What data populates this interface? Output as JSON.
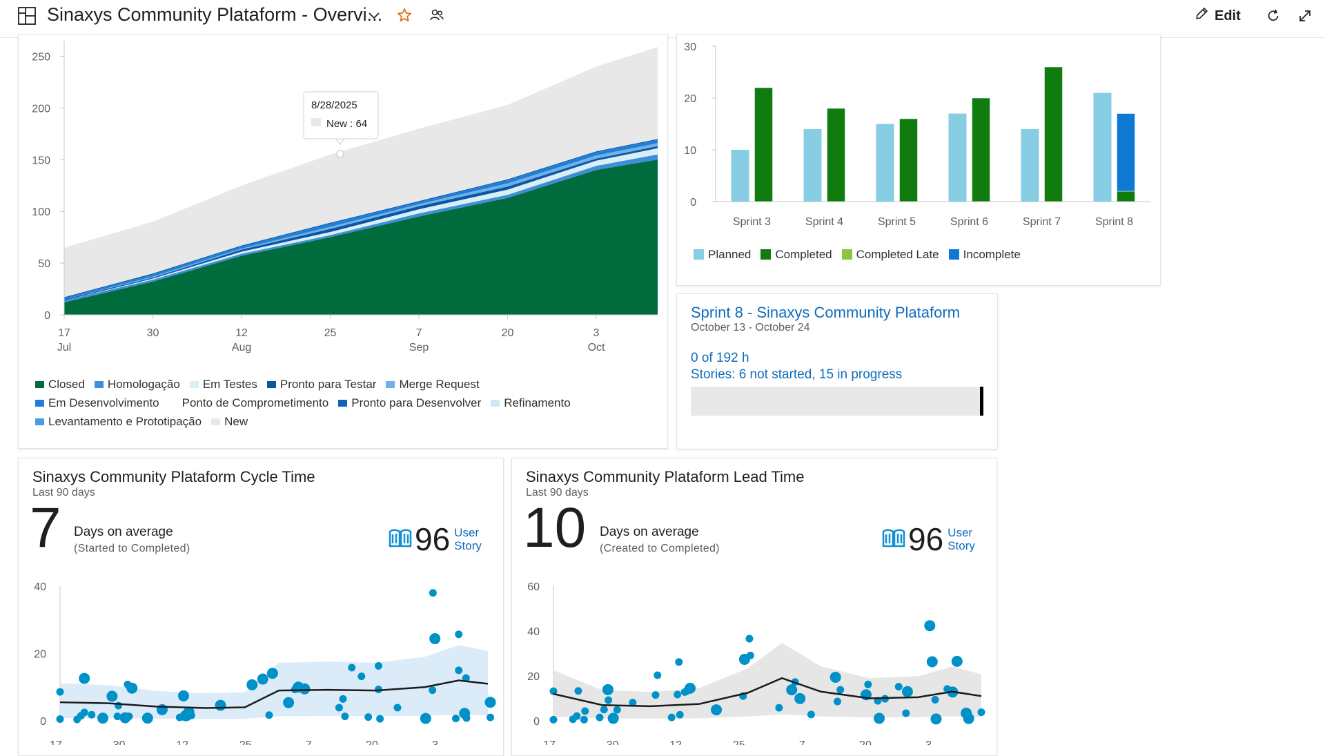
{
  "header": {
    "title": "Sinaxys Community Plataform - Overvi...",
    "edit_label": "Edit",
    "icons": [
      "dashboard-icon",
      "chevron-down-icon",
      "star-icon",
      "team-icon",
      "pencil-icon",
      "refresh-icon",
      "expand-icon"
    ]
  },
  "cfd": {
    "tooltip": {
      "date": "8/28/2025",
      "label": "New : 64"
    },
    "legend": [
      [
        "Closed",
        "Homologação",
        "Em Testes",
        "Pronto para Testar",
        "Merge Request"
      ],
      [
        "Em Desenvolvimento",
        "Ponto de Comprometimento",
        "Pronto para Desenvolver",
        "Refinamento"
      ],
      [
        "Levantamento e Prototipação",
        "New"
      ]
    ],
    "colors": {
      "Closed": "#006b3c",
      "Homologação": "#3f8fd8",
      "Em Testes": "#d9eef6",
      "Pronto para Testar": "#0b55a2",
      "Merge Request": "#6fb0e8",
      "Em Desenvolvimento": "#1f7fd4",
      "Ponto de Comprometimento": "#ffffff",
      "Pronto para Desenvolver": "#0f62b5",
      "Refinamento": "#cfe8ef",
      "Levantamento e Prototipação": "#4a9be0",
      "New": "#e8e8e8"
    }
  },
  "velocity": {
    "legend": [
      {
        "label": "Planned",
        "color": "#87cde3"
      },
      {
        "label": "Completed",
        "color": "#107c10"
      },
      {
        "label": "Completed Late",
        "color": "#8cc63f"
      },
      {
        "label": "Incomplete",
        "color": "#0f78d4"
      }
    ]
  },
  "sprint": {
    "title": "Sprint 8 - Sinaxys Community Plataform",
    "dates": "October 13 - October 24",
    "hours": "0 of 192 h",
    "stories": "Stories: 6 not started, 15 in progress"
  },
  "cycle": {
    "title": "Sinaxys Community Plataform Cycle Time",
    "period": "Last 90 days",
    "value": "7",
    "desc": "Days on average",
    "desc2": "(Started to Completed)",
    "count": "96",
    "type1": "User",
    "type2": "Story"
  },
  "lead": {
    "title": "Sinaxys Community Plataform Lead Time",
    "period": "Last 90 days",
    "value": "10",
    "desc": "Days on average",
    "desc2": "(Created to Completed)",
    "count": "96",
    "type1": "User",
    "type2": "Story"
  },
  "chart_data": [
    {
      "type": "area",
      "title": "",
      "x": [
        "2025-07-17",
        "2025-07-30",
        "2025-08-12",
        "2025-08-25",
        "2025-09-07",
        "2025-09-20",
        "2025-10-03",
        "2025-10-12"
      ],
      "tick_labels": [
        [
          "17",
          "Jul"
        ],
        [
          "30",
          ""
        ],
        [
          "12",
          "Aug"
        ],
        [
          "25",
          ""
        ],
        [
          "7",
          "Sep"
        ],
        [
          "20",
          ""
        ],
        [
          "3",
          "Oct"
        ]
      ],
      "ylim": [
        0,
        265
      ],
      "yticks": [
        0,
        50,
        100,
        150,
        200,
        250
      ],
      "series": [
        {
          "name": "Closed",
          "values": [
            12,
            32,
            57,
            75,
            95,
            113,
            140,
            150
          ]
        },
        {
          "name": "Homologação",
          "values": [
            2,
            2,
            2,
            2,
            3,
            3,
            4,
            5
          ]
        },
        {
          "name": "Em Testes",
          "values": [
            0,
            1,
            2,
            3,
            4,
            5,
            5,
            6
          ]
        },
        {
          "name": "Pronto para Testar",
          "values": [
            1,
            1,
            2,
            3,
            3,
            3,
            2,
            2
          ]
        },
        {
          "name": "Merge Request",
          "values": [
            0,
            1,
            1,
            2,
            2,
            3,
            3,
            3
          ]
        },
        {
          "name": "Em Desenvolvimento",
          "values": [
            1,
            2,
            2,
            3,
            2,
            3,
            3,
            3
          ]
        },
        {
          "name": "Ponto de Comprometimento",
          "values": [
            0,
            0,
            0,
            0,
            0,
            0,
            0,
            0
          ]
        },
        {
          "name": "Pronto para Desenvolver",
          "values": [
            1,
            1,
            1,
            1,
            1,
            1,
            1,
            1
          ]
        },
        {
          "name": "Refinamento",
          "values": [
            0,
            0,
            0,
            0,
            0,
            0,
            0,
            0
          ]
        },
        {
          "name": "Levantamento e Prototipação",
          "values": [
            0,
            0,
            0,
            0,
            0,
            0,
            0,
            0
          ]
        },
        {
          "name": "New",
          "values": [
            48,
            50,
            58,
            66,
            70,
            72,
            82,
            89
          ]
        }
      ]
    },
    {
      "type": "bar",
      "title": "",
      "categories": [
        "Sprint 3",
        "Sprint 4",
        "Sprint 5",
        "Sprint 6",
        "Sprint 7",
        "Sprint 8"
      ],
      "ylim": [
        0,
        30
      ],
      "yticks": [
        0,
        10,
        20,
        30
      ],
      "series": [
        {
          "name": "Planned",
          "values": [
            10,
            14,
            15,
            17,
            14,
            21
          ]
        },
        {
          "name": "Completed",
          "values": [
            22,
            18,
            16,
            20,
            26,
            2
          ]
        },
        {
          "name": "Completed Late",
          "values": [
            0,
            0,
            0,
            0,
            0,
            0
          ]
        },
        {
          "name": "Incomplete",
          "values": [
            0,
            0,
            0,
            0,
            0,
            15
          ]
        }
      ]
    },
    {
      "type": "scatter",
      "title": "",
      "xlim": [
        0,
        88
      ],
      "ylim": [
        0,
        40
      ],
      "yticks": [
        0,
        20,
        40
      ],
      "xticks": [
        {
          "x": 0,
          "label": "17"
        },
        {
          "x": 13,
          "label": "30"
        },
        {
          "x": 26,
          "label": "12"
        },
        {
          "x": 39,
          "label": "25"
        },
        {
          "x": 52,
          "label": "7"
        },
        {
          "x": 65,
          "label": "20"
        },
        {
          "x": 78,
          "label": "3"
        }
      ],
      "points": [
        [
          0,
          0.5
        ],
        [
          0,
          8.6
        ],
        [
          3.5,
          0.4
        ],
        [
          4.3,
          1.5
        ],
        [
          5,
          2.5
        ],
        [
          5,
          12.6
        ],
        [
          6.5,
          1.8
        ],
        [
          8.8,
          0.8
        ],
        [
          10.7,
          7.3
        ],
        [
          11.8,
          1.3
        ],
        [
          12,
          4.5
        ],
        [
          13.4,
          0.9
        ],
        [
          13.9,
          10.8
        ],
        [
          14.2,
          1.3
        ],
        [
          14.8,
          9.7
        ],
        [
          18,
          0.8
        ],
        [
          21,
          3.3
        ],
        [
          24.6,
          1
        ],
        [
          25.4,
          7.4
        ],
        [
          25.8,
          1.5
        ],
        [
          26.2,
          1.1
        ],
        [
          26.5,
          2.6
        ],
        [
          27,
          1.6
        ],
        [
          33,
          4.6
        ],
        [
          39.5,
          10.7
        ],
        [
          41.7,
          12.4
        ],
        [
          43,
          1.7
        ],
        [
          43.7,
          14.1
        ],
        [
          47,
          5.4
        ],
        [
          48.3,
          9.3
        ],
        [
          49,
          10
        ],
        [
          50.3,
          9.5
        ],
        [
          57.4,
          3.9
        ],
        [
          58.2,
          6.5
        ],
        [
          58.6,
          1.3
        ],
        [
          60,
          15.8
        ],
        [
          62,
          13.2
        ],
        [
          63.4,
          1.1
        ],
        [
          65.5,
          9.3
        ],
        [
          65.5,
          16.3
        ],
        [
          65.8,
          0.6
        ],
        [
          69.4,
          3.9
        ],
        [
          75.2,
          0.7
        ],
        [
          76.6,
          9.1
        ],
        [
          76.7,
          38
        ],
        [
          77.1,
          24.4
        ],
        [
          81.4,
          0.7
        ],
        [
          82,
          25.7
        ],
        [
          82,
          15
        ],
        [
          83.2,
          2.2
        ],
        [
          83.5,
          12.7
        ],
        [
          83.6,
          0.8
        ],
        [
          88.5,
          1
        ],
        [
          88.5,
          5.5
        ]
      ],
      "avg": [
        [
          0,
          5.5
        ],
        [
          10,
          5.2
        ],
        [
          20,
          4.2
        ],
        [
          30,
          3.8
        ],
        [
          38,
          4
        ],
        [
          45,
          9
        ],
        [
          55,
          9.2
        ],
        [
          65,
          9
        ],
        [
          75,
          10
        ],
        [
          82,
          12
        ],
        [
          88,
          11
        ]
      ]
    },
    {
      "type": "scatter",
      "title": "",
      "xlim": [
        0,
        88
      ],
      "ylim": [
        0,
        60
      ],
      "yticks": [
        0,
        20,
        40,
        60
      ],
      "xticks": [
        {
          "x": 0,
          "label": "17"
        },
        {
          "x": 13,
          "label": "30"
        },
        {
          "x": 26,
          "label": "12"
        },
        {
          "x": 39,
          "label": "25"
        },
        {
          "x": 52,
          "label": "7"
        },
        {
          "x": 65,
          "label": "20"
        },
        {
          "x": 78,
          "label": "3"
        }
      ],
      "points": [
        [
          0,
          13.2
        ],
        [
          0,
          0.5
        ],
        [
          4,
          0.7
        ],
        [
          4.8,
          2.1
        ],
        [
          5.1,
          13.3
        ],
        [
          6.3,
          0.5
        ],
        [
          6.5,
          4.3
        ],
        [
          9.5,
          1.5
        ],
        [
          10.4,
          5
        ],
        [
          11.2,
          13.9
        ],
        [
          11.3,
          9.2
        ],
        [
          12.3,
          1.1
        ],
        [
          13.1,
          4.9
        ],
        [
          16.3,
          8.1
        ],
        [
          21,
          11.5
        ],
        [
          21.4,
          20.3
        ],
        [
          24.3,
          1.5
        ],
        [
          25.8,
          26.2
        ],
        [
          25.5,
          11.7
        ],
        [
          26,
          2.7
        ],
        [
          27,
          12.8
        ],
        [
          27.3,
          13.1
        ],
        [
          28.1,
          14.5
        ],
        [
          33.5,
          4.9
        ],
        [
          39.3,
          27.4
        ],
        [
          39,
          11
        ],
        [
          40.3,
          36.6
        ],
        [
          40.5,
          29.1
        ],
        [
          46.4,
          5.8
        ],
        [
          49,
          13.8
        ],
        [
          49.7,
          17.3
        ],
        [
          50.7,
          9.9
        ],
        [
          53,
          2.8
        ],
        [
          58,
          19.4
        ],
        [
          58.4,
          8.6
        ],
        [
          59,
          13.8
        ],
        [
          64.3,
          11.6
        ],
        [
          64.7,
          16.2
        ],
        [
          66.7,
          8.9
        ],
        [
          67,
          1.1
        ],
        [
          68.2,
          9.8
        ],
        [
          71,
          15.2
        ],
        [
          72.5,
          3.4
        ],
        [
          72.8,
          13
        ],
        [
          77.4,
          42.4
        ],
        [
          77.9,
          26.3
        ],
        [
          78.5,
          9.4
        ],
        [
          78.7,
          0.8
        ],
        [
          81,
          14.2
        ],
        [
          82.1,
          12.8
        ],
        [
          83,
          26.5
        ],
        [
          84.9,
          3.4
        ],
        [
          85.4,
          1
        ],
        [
          88,
          3.8
        ]
      ],
      "avg": [
        [
          0,
          12
        ],
        [
          10,
          7
        ],
        [
          20,
          6.5
        ],
        [
          30,
          7.5
        ],
        [
          40,
          12.5
        ],
        [
          47,
          19
        ],
        [
          55,
          13
        ],
        [
          65,
          10
        ],
        [
          75,
          10.5
        ],
        [
          82,
          13
        ],
        [
          88,
          11
        ]
      ]
    }
  ]
}
